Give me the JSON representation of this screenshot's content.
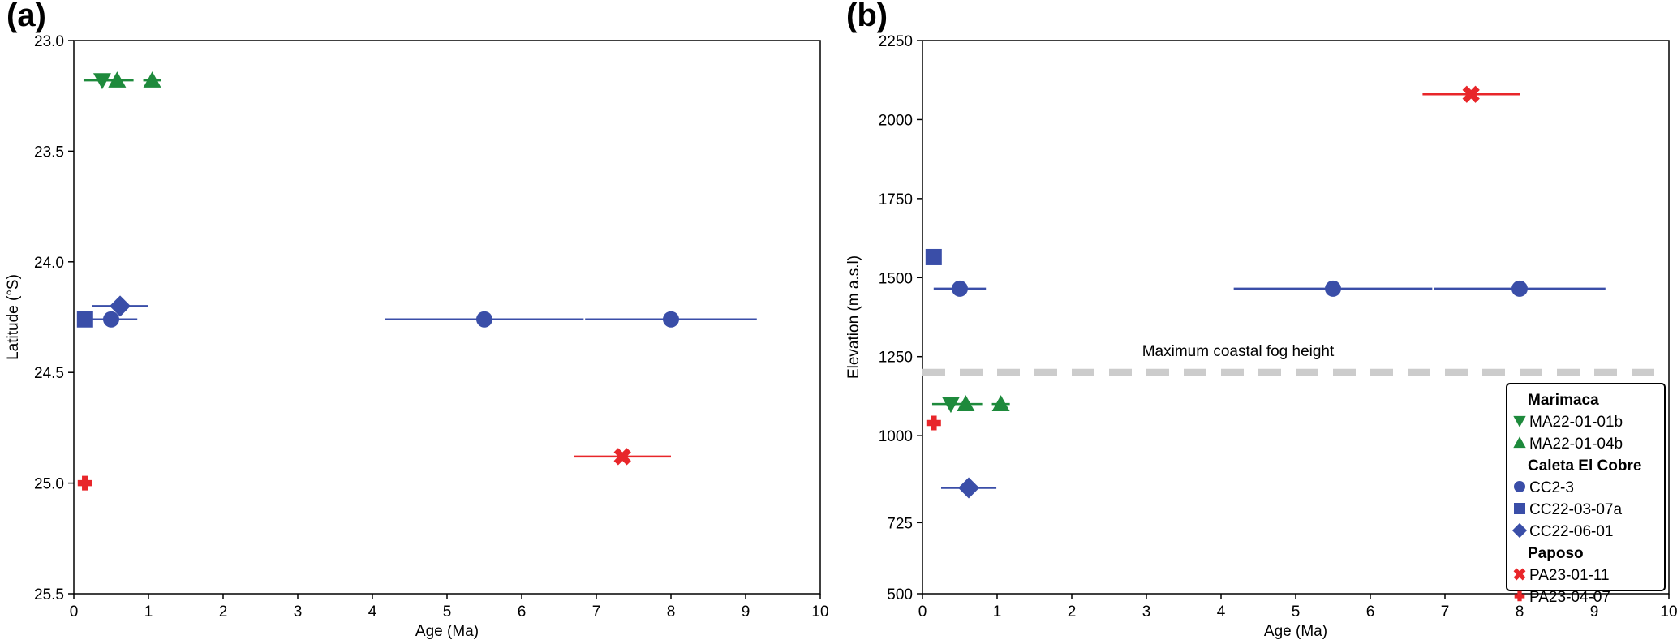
{
  "colors": {
    "Marimaca": "#1e8a3c",
    "Caleta El Cobre": "#3a4ea8",
    "Paposo": "#e8262a",
    "fog": "#cccccc"
  },
  "legend": {
    "groups": [
      {
        "title": "Marimaca",
        "color_key": "Marimaca",
        "items": [
          {
            "label": "MA22-01-01b",
            "marker": "triangle-down"
          },
          {
            "label": "MA22-01-04b",
            "marker": "triangle-up"
          }
        ]
      },
      {
        "title": "Caleta El Cobre",
        "color_key": "Caleta El Cobre",
        "items": [
          {
            "label": "CC2-3",
            "marker": "circle"
          },
          {
            "label": "CC22-03-07a",
            "marker": "square"
          },
          {
            "label": "CC22-06-01",
            "marker": "diamond"
          }
        ]
      },
      {
        "title": "Paposo",
        "color_key": "Paposo",
        "items": [
          {
            "label": "PA23-01-11",
            "marker": "x"
          },
          {
            "label": "PA23-04-07",
            "marker": "plus"
          }
        ]
      }
    ]
  },
  "chart_data": [
    {
      "type": "scatter",
      "panel_label": "(a)",
      "xlabel": "Age (Ma)",
      "ylabel": "Latitude (°S)",
      "xlim": [
        0,
        10
      ],
      "ylim": [
        25.5,
        23.0
      ],
      "y_inverted": true,
      "xticks": [
        0,
        1,
        2,
        3,
        4,
        5,
        6,
        7,
        8,
        9,
        10
      ],
      "yticks": [
        "23.0",
        "23.5",
        "24.0",
        "24.5",
        "25.0",
        "25.5"
      ],
      "points": [
        {
          "sample": "MA22-01-01b",
          "group": "Marimaca",
          "marker": "triangle-down",
          "x": 0.38,
          "xerr": 0.25,
          "y": 23.18
        },
        {
          "sample": "MA22-01-04b",
          "group": "Marimaca",
          "marker": "triangle-up",
          "x": 0.58,
          "xerr": 0.22,
          "y": 23.18
        },
        {
          "sample": "MA22-01-04b",
          "group": "Marimaca",
          "marker": "triangle-up",
          "x": 1.05,
          "xerr": 0.12,
          "y": 23.18
        },
        {
          "sample": "CC22-03-07a",
          "group": "Caleta El Cobre",
          "marker": "square",
          "x": 0.15,
          "xerr": 0.06,
          "y": 24.26
        },
        {
          "sample": "CC2-3",
          "group": "Caleta El Cobre",
          "marker": "circle",
          "x": 0.5,
          "xerr": 0.35,
          "y": 24.26
        },
        {
          "sample": "CC22-06-01",
          "group": "Caleta El Cobre",
          "marker": "diamond",
          "x": 0.62,
          "xerr": 0.37,
          "y": 24.2
        },
        {
          "sample": "CC2-3",
          "group": "Caleta El Cobre",
          "marker": "circle",
          "x": 5.5,
          "xerr": 1.33,
          "y": 24.26
        },
        {
          "sample": "CC2-3",
          "group": "Caleta El Cobre",
          "marker": "circle",
          "x": 8.0,
          "xerr": 1.15,
          "y": 24.26
        },
        {
          "sample": "PA23-01-11",
          "group": "Paposo",
          "marker": "x",
          "x": 7.35,
          "xerr": 0.65,
          "y": 24.88
        },
        {
          "sample": "PA23-04-07",
          "group": "Paposo",
          "marker": "plus",
          "x": 0.15,
          "xerr": 0.05,
          "y": 25.0
        }
      ]
    },
    {
      "type": "scatter",
      "panel_label": "(b)",
      "xlabel": "Age (Ma)",
      "ylabel": "Elevation (m a.s.l)",
      "xlim": [
        0,
        10
      ],
      "ylim": [
        500,
        2250
      ],
      "xticks": [
        0,
        1,
        2,
        3,
        4,
        5,
        6,
        7,
        8,
        9,
        10
      ],
      "yticks": [
        500,
        725,
        1000,
        1250,
        1500,
        1750,
        2000,
        2250
      ],
      "reference_line": {
        "y": 1200,
        "label": "Maximum coastal fog height",
        "style": "dashed"
      },
      "legend_position": "lower-right",
      "points": [
        {
          "sample": "PA23-01-11",
          "group": "Paposo",
          "marker": "x",
          "x": 7.35,
          "xerr": 0.65,
          "y": 2080
        },
        {
          "sample": "CC22-03-07a",
          "group": "Caleta El Cobre",
          "marker": "square",
          "x": 0.15,
          "xerr": 0.06,
          "y": 1565
        },
        {
          "sample": "CC2-3",
          "group": "Caleta El Cobre",
          "marker": "circle",
          "x": 0.5,
          "xerr": 0.35,
          "y": 1465
        },
        {
          "sample": "CC2-3",
          "group": "Caleta El Cobre",
          "marker": "circle",
          "x": 5.5,
          "xerr": 1.33,
          "y": 1465
        },
        {
          "sample": "CC2-3",
          "group": "Caleta El Cobre",
          "marker": "circle",
          "x": 8.0,
          "xerr": 1.15,
          "y": 1465
        },
        {
          "sample": "MA22-01-01b",
          "group": "Marimaca",
          "marker": "triangle-down",
          "x": 0.38,
          "xerr": 0.25,
          "y": 1100
        },
        {
          "sample": "MA22-01-04b",
          "group": "Marimaca",
          "marker": "triangle-up",
          "x": 0.58,
          "xerr": 0.22,
          "y": 1100
        },
        {
          "sample": "MA22-01-04b",
          "group": "Marimaca",
          "marker": "triangle-up",
          "x": 1.05,
          "xerr": 0.12,
          "y": 1100
        },
        {
          "sample": "PA23-04-07",
          "group": "Paposo",
          "marker": "plus",
          "x": 0.15,
          "xerr": 0.05,
          "y": 1040
        },
        {
          "sample": "CC22-06-01",
          "group": "Caleta El Cobre",
          "marker": "diamond",
          "x": 0.62,
          "xerr": 0.37,
          "y": 835
        }
      ]
    }
  ]
}
